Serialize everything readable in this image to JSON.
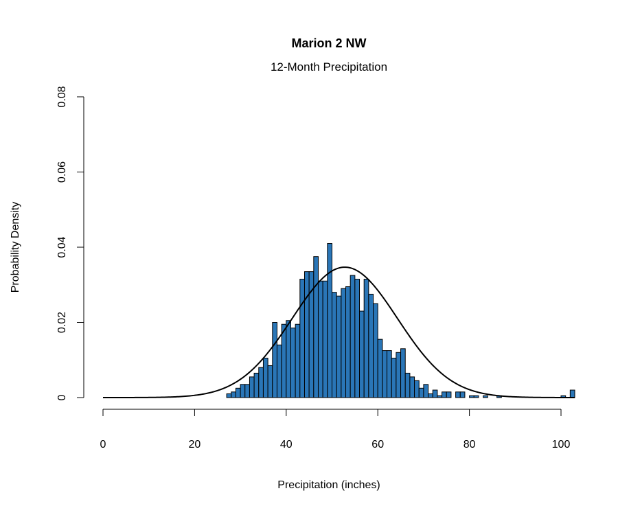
{
  "chart_data": {
    "type": "bar",
    "title": "Marion 2 NW",
    "subtitle": "12-Month Precipitation",
    "xlabel": "Precipitation (inches)",
    "ylabel": "Probability Density",
    "xlim": [
      0,
      103
    ],
    "ylim": [
      0,
      0.08
    ],
    "x_ticks": [
      0,
      20,
      40,
      60,
      80,
      100
    ],
    "x_tick_labels": [
      "0",
      "20",
      "40",
      "60",
      "80",
      "100"
    ],
    "y_ticks": [
      0,
      0.02,
      0.04,
      0.06,
      0.08
    ],
    "y_tick_labels": [
      "0",
      "0.02",
      "0.04",
      "0.06",
      "0.08"
    ],
    "bar_color": "#2a76b7",
    "bin_width": 1,
    "bins_start": [
      27,
      28,
      29,
      30,
      31,
      32,
      33,
      34,
      35,
      36,
      37,
      38,
      39,
      40,
      41,
      42,
      43,
      44,
      45,
      46,
      47,
      48,
      49,
      50,
      51,
      52,
      53,
      54,
      55,
      56,
      57,
      58,
      59,
      60,
      61,
      62,
      63,
      64,
      65,
      66,
      67,
      68,
      69,
      70,
      71,
      72,
      73,
      74,
      75,
      76,
      77,
      78,
      79,
      80,
      81,
      82,
      83,
      84,
      85,
      86,
      87,
      88,
      89,
      90,
      91,
      92,
      93,
      94,
      95,
      96,
      97,
      98,
      99,
      100,
      101,
      102
    ],
    "density": [
      0.001,
      0.0015,
      0.0025,
      0.0035,
      0.0035,
      0.0055,
      0.0065,
      0.008,
      0.0105,
      0.0085,
      0.02,
      0.014,
      0.0195,
      0.0205,
      0.0185,
      0.0195,
      0.0315,
      0.0335,
      0.0335,
      0.0375,
      0.031,
      0.031,
      0.041,
      0.028,
      0.027,
      0.029,
      0.0295,
      0.0325,
      0.0315,
      0.023,
      0.0315,
      0.0275,
      0.025,
      0.0155,
      0.0125,
      0.0125,
      0.0105,
      0.012,
      0.013,
      0.0065,
      0.0055,
      0.0045,
      0.0025,
      0.0035,
      0.001,
      0.002,
      0.0005,
      0.0015,
      0.0015,
      0.0,
      0.0015,
      0.0015,
      0.0,
      0.0005,
      0.0005,
      0.0,
      0.0005,
      0.0,
      0.0,
      0.0005,
      0.0,
      0.0,
      0.0,
      0.0,
      0.0,
      0.0,
      0.0,
      0.0,
      0.0,
      0.0,
      0.0,
      0.0,
      0.0,
      0.0005,
      0.0,
      0.002
    ],
    "fitted_curve": {
      "type": "normal",
      "mean": 52.8,
      "sd": 11.5
    }
  }
}
